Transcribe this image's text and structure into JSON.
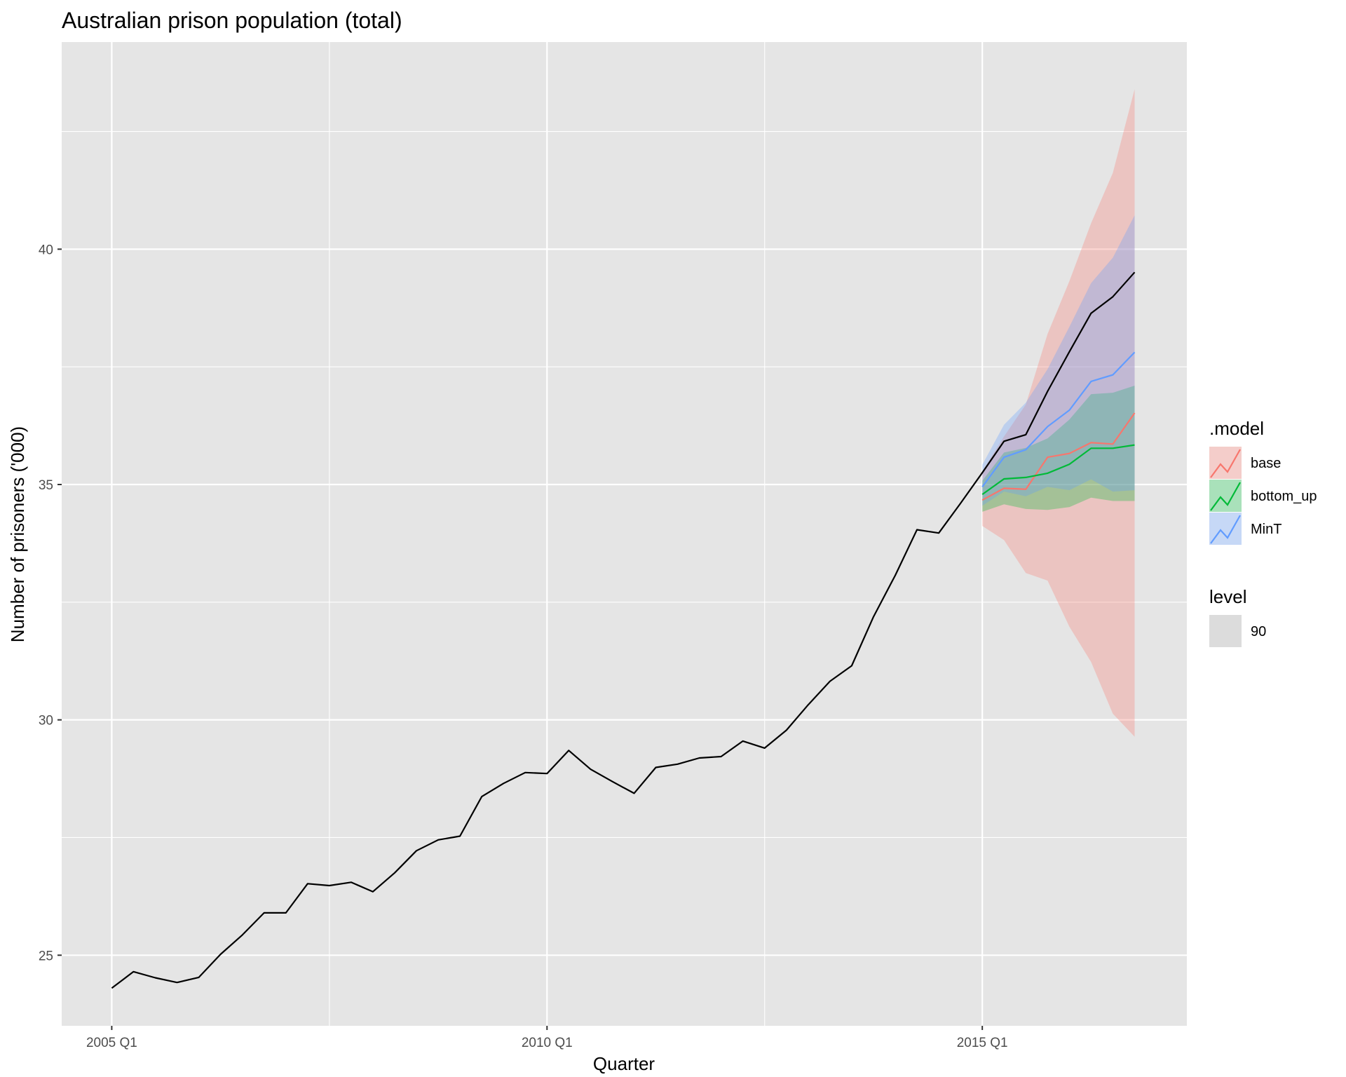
{
  "chart_data": {
    "type": "line",
    "title": "Australian prison population (total)",
    "xlabel": "Quarter",
    "ylabel": "Number of prisoners ('000)",
    "x_ticks": [
      {
        "quarter_index": 0,
        "label": "2005 Q1"
      },
      {
        "quarter_index": 20,
        "label": "2010 Q1"
      },
      {
        "quarter_index": 40,
        "label": "2015 Q1"
      }
    ],
    "y_ticks": [
      25,
      30,
      35,
      40
    ],
    "xlim": [
      -2.3,
      49.4
    ],
    "ylim": [
      23.5,
      44.4
    ],
    "grid": true,
    "background": "#e5e5e5",
    "grid_color": "#ffffff",
    "actual": {
      "quarters": [
        "2005 Q1",
        "2005 Q2",
        "2005 Q3",
        "2005 Q4",
        "2006 Q1",
        "2006 Q2",
        "2006 Q3",
        "2006 Q4",
        "2007 Q1",
        "2007 Q2",
        "2007 Q3",
        "2007 Q4",
        "2008 Q1",
        "2008 Q2",
        "2008 Q3",
        "2008 Q4",
        "2009 Q1",
        "2009 Q2",
        "2009 Q3",
        "2009 Q4",
        "2010 Q1",
        "2010 Q2",
        "2010 Q3",
        "2010 Q4",
        "2011 Q1",
        "2011 Q2",
        "2011 Q3",
        "2011 Q4",
        "2012 Q1",
        "2012 Q2",
        "2012 Q3",
        "2012 Q4",
        "2013 Q1",
        "2013 Q2",
        "2013 Q3",
        "2013 Q4",
        "2014 Q1",
        "2014 Q2",
        "2014 Q3",
        "2014 Q4",
        "2015 Q1",
        "2015 Q2",
        "2015 Q3",
        "2015 Q4",
        "2016 Q1",
        "2016 Q2",
        "2016 Q3",
        "2016 Q4"
      ],
      "values": [
        24.3,
        24.65,
        24.52,
        24.42,
        24.53,
        25.02,
        25.43,
        25.9,
        25.9,
        26.52,
        26.48,
        26.55,
        26.35,
        26.75,
        27.22,
        27.45,
        27.53,
        28.37,
        28.65,
        28.88,
        28.86,
        29.35,
        28.95,
        28.69,
        28.44,
        28.99,
        29.06,
        29.19,
        29.22,
        29.55,
        29.4,
        29.78,
        30.32,
        30.82,
        31.15,
        32.19,
        33.07,
        34.04,
        33.97,
        34.6,
        35.25,
        35.92,
        36.06,
        36.98,
        37.82,
        38.64,
        38.99,
        39.51
      ],
      "color": "#000000"
    },
    "forecast_quarters": [
      "2015 Q1",
      "2015 Q2",
      "2015 Q3",
      "2015 Q4",
      "2016 Q1",
      "2016 Q2",
      "2016 Q3",
      "2016 Q4"
    ],
    "series": [
      {
        "name": "base",
        "color": "#F8766D",
        "fill": "#F8766D",
        "mean": [
          34.67,
          34.92,
          34.9,
          35.58,
          35.66,
          35.89,
          35.86,
          36.52
        ],
        "lower_90": [
          34.12,
          33.82,
          33.12,
          32.96,
          31.98,
          31.23,
          30.13,
          29.64
        ],
        "upper_90": [
          35.28,
          36.02,
          36.7,
          38.2,
          39.32,
          40.55,
          41.62,
          43.4
        ]
      },
      {
        "name": "bottom_up",
        "color": "#00BA38",
        "fill": "#00BA38",
        "mean": [
          34.79,
          35.12,
          35.15,
          35.24,
          35.43,
          35.77,
          35.77,
          35.84
        ],
        "lower_90": [
          34.42,
          34.58,
          34.48,
          34.46,
          34.52,
          34.72,
          34.65,
          34.65
        ],
        "upper_90": [
          35.08,
          35.68,
          35.78,
          35.98,
          36.38,
          36.92,
          36.95,
          37.1
        ]
      },
      {
        "name": "MinT",
        "color": "#619CFF",
        "fill": "#619CFF",
        "mean": [
          34.95,
          35.58,
          35.74,
          36.23,
          36.58,
          37.19,
          37.33,
          37.81
        ],
        "lower_90": [
          34.55,
          34.85,
          34.75,
          34.95,
          34.88,
          35.11,
          34.85,
          34.88
        ],
        "upper_90": [
          35.42,
          36.27,
          36.74,
          37.45,
          38.35,
          39.28,
          39.82,
          40.72
        ]
      }
    ],
    "interval_opacity": 0.3,
    "legend": {
      "placement": "right",
      "model_title": ".model",
      "model_items": [
        "base",
        "bottom_up",
        "MinT"
      ],
      "level_title": "level",
      "level_items": [
        "90"
      ]
    }
  }
}
